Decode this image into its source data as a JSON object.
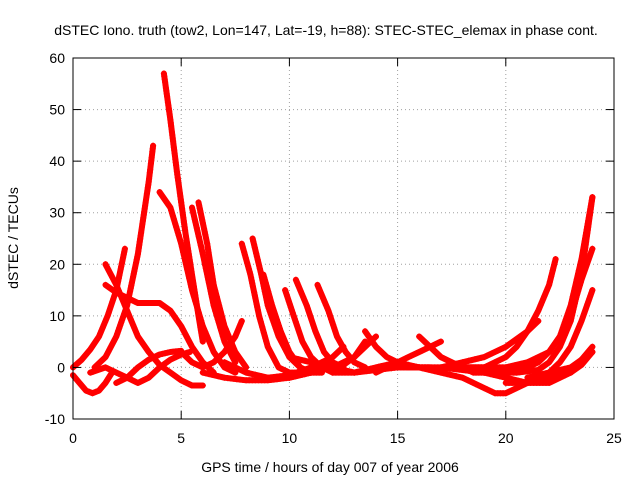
{
  "chart_data": {
    "type": "scatter",
    "title": "dSTEC Iono. truth (tow2, Lon=147, Lat=-19, h=88): STEC-STEC_elemax in phase cont.",
    "xlabel": "GPS time / hours of day 007 of year 2006",
    "ylabel": "dSTEC  / TECUs",
    "xlim": [
      0,
      25
    ],
    "ylim": [
      -10,
      60
    ],
    "xticks": [
      0,
      5,
      10,
      15,
      20,
      25
    ],
    "yticks": [
      -10,
      0,
      10,
      20,
      30,
      40,
      50,
      60
    ],
    "grid": true,
    "grid_style": "dotted",
    "marker": "plus",
    "color": "#ff0000",
    "series": [
      {
        "x": [
          0.0,
          0.4,
          0.8,
          1.2,
          1.6,
          2.0,
          2.4
        ],
        "y": [
          0,
          1.5,
          3.5,
          6,
          10,
          15,
          23
        ]
      },
      {
        "x": [
          0.0,
          0.3,
          0.6,
          0.9,
          1.2,
          1.5,
          1.8
        ],
        "y": [
          -1.5,
          -3,
          -4.5,
          -5,
          -4.5,
          -3,
          -1
        ]
      },
      {
        "x": [
          1.0,
          1.5,
          2.0,
          2.5,
          3.0,
          3.5,
          3.7
        ],
        "y": [
          0,
          2,
          6,
          12,
          22,
          36,
          43
        ]
      },
      {
        "x": [
          1.5,
          2.0,
          2.5,
          3.0,
          3.5,
          4.0,
          4.5,
          5.0,
          5.5,
          6.0
        ],
        "y": [
          20,
          16,
          11,
          6,
          3,
          0.5,
          -1,
          -2.5,
          -3.5,
          -3.5
        ]
      },
      {
        "x": [
          0.8,
          1.5,
          2.0,
          2.5,
          3.0,
          3.5,
          4.0,
          4.5,
          5.0,
          5.4
        ],
        "y": [
          -1,
          0,
          -1,
          -2,
          -3,
          -2,
          0,
          1.5,
          2.5,
          3
        ]
      },
      {
        "x": [
          1.5,
          2.0,
          2.5,
          3.0,
          3.5,
          4.0,
          4.5,
          5.0,
          5.5,
          6.0,
          6.5
        ],
        "y": [
          16,
          14.5,
          13.5,
          12.5,
          12.5,
          12.5,
          11,
          8,
          4,
          1,
          -1
        ]
      },
      {
        "x": [
          2.0,
          2.5,
          3.0,
          3.5,
          4.0,
          4.5,
          5.0
        ],
        "y": [
          -3,
          -2,
          0,
          1.5,
          2.5,
          3,
          3.2
        ]
      },
      {
        "x": [
          4.2,
          4.5,
          4.8,
          5.0,
          5.2,
          5.5,
          5.8,
          6.0
        ],
        "y": [
          57,
          48,
          38,
          32,
          26,
          18,
          10,
          5
        ]
      },
      {
        "x": [
          4.0,
          4.5,
          5.0,
          5.5,
          6.0,
          6.5,
          7.0,
          7.5
        ],
        "y": [
          34,
          31,
          24,
          15,
          8,
          3,
          0,
          -1
        ]
      },
      {
        "x": [
          5.5,
          6.0,
          6.5,
          7.0,
          7.5
        ],
        "y": [
          31,
          22,
          12,
          5,
          1
        ]
      },
      {
        "x": [
          5.8,
          6.2,
          6.5,
          7.0,
          7.5,
          8.0
        ],
        "y": [
          32,
          24,
          16,
          8,
          3,
          0
        ]
      },
      {
        "x": [
          5.0,
          5.5,
          6.0,
          6.5,
          7.0,
          7.5,
          7.8
        ],
        "y": [
          3,
          1,
          0,
          1,
          3,
          6,
          9
        ]
      },
      {
        "x": [
          7.8,
          8.2,
          8.6,
          9.0,
          9.5,
          10.0,
          10.5
        ],
        "y": [
          24,
          18,
          10,
          4,
          0,
          -1,
          -1
        ]
      },
      {
        "x": [
          8.3,
          8.7,
          9.0,
          9.5,
          10.0,
          10.5,
          11.0
        ],
        "y": [
          25,
          18,
          12,
          6,
          2,
          0,
          -1
        ]
      },
      {
        "x": [
          8.8,
          9.2,
          9.6,
          10.0,
          10.5,
          11.0,
          11.5
        ],
        "y": [
          18,
          12,
          7,
          3,
          0,
          -1,
          -1
        ]
      },
      {
        "x": [
          6.0,
          7.0,
          8.0,
          9.0,
          10.0,
          11.0,
          11.5,
          12.0
        ],
        "y": [
          -1,
          -2,
          -2.5,
          -2.5,
          -2,
          -1,
          0,
          1
        ]
      },
      {
        "x": [
          7.0,
          8.0,
          9.0,
          10.0,
          11.0,
          12.0,
          12.5
        ],
        "y": [
          1,
          -1,
          -2,
          -1.5,
          0,
          2,
          4
        ]
      },
      {
        "x": [
          9.8,
          10.2,
          10.6,
          11.0,
          11.5,
          12.0
        ],
        "y": [
          15,
          10,
          5,
          2,
          0,
          -1
        ]
      },
      {
        "x": [
          10.3,
          10.8,
          11.2,
          11.6,
          12.0,
          12.5
        ],
        "y": [
          17,
          12,
          7,
          3,
          1,
          0
        ]
      },
      {
        "x": [
          11.3,
          11.8,
          12.2,
          12.6,
          13.0,
          13.5
        ],
        "y": [
          16,
          11,
          6,
          3,
          1,
          0
        ]
      },
      {
        "x": [
          9.0,
          10.0,
          11.0,
          12.0,
          13.0,
          13.5
        ],
        "y": [
          -2,
          -2,
          -1,
          0,
          2,
          5
        ]
      },
      {
        "x": [
          10.0,
          11.0,
          12.0,
          12.5,
          13.0,
          13.5,
          14.0
        ],
        "y": [
          2,
          1,
          0,
          0.5,
          2,
          4,
          6
        ]
      },
      {
        "x": [
          12.0,
          12.5,
          13.0,
          13.5,
          14.0,
          14.5,
          15.0,
          15.5,
          16.0
        ],
        "y": [
          0,
          -0.5,
          -1,
          -0.5,
          0,
          0.5,
          1,
          0.5,
          0
        ]
      },
      {
        "x": [
          13.5,
          14.0,
          14.5,
          15.0,
          15.5,
          16.0,
          16.5
        ],
        "y": [
          7,
          4,
          2,
          1,
          0,
          0,
          0
        ]
      },
      {
        "x": [
          14.0,
          14.5,
          15.0,
          15.5,
          16.0,
          16.5,
          17.0
        ],
        "y": [
          -1,
          0,
          1,
          2,
          3,
          4,
          5
        ]
      },
      {
        "x": [
          16.0,
          16.5,
          17.0,
          17.5,
          18.0,
          18.5,
          19.0
        ],
        "y": [
          6,
          4,
          2,
          1,
          0,
          0,
          0
        ]
      },
      {
        "x": [
          12.0,
          13.0,
          14.0,
          15.0,
          16.0,
          17.0,
          18.0,
          19.0,
          20.0
        ],
        "y": [
          -1,
          -1,
          -0.5,
          0,
          0,
          0,
          -0.5,
          -1,
          -1
        ]
      },
      {
        "x": [
          15.0,
          16.0,
          17.0,
          18.0,
          19.0,
          19.5,
          20.0,
          21.0,
          22.0,
          23.0,
          24.0
        ],
        "y": [
          0,
          0,
          -1,
          -2,
          -4,
          -5,
          -5,
          -3,
          -1,
          0,
          3
        ]
      },
      {
        "x": [
          16.5,
          17.0,
          17.5,
          18.0,
          18.5,
          19.0
        ],
        "y": [
          4,
          2,
          1,
          0,
          -1,
          -1
        ]
      },
      {
        "x": [
          17.0,
          18.0,
          19.0,
          20.0,
          21.0,
          21.5
        ],
        "y": [
          0,
          1,
          2,
          4,
          7,
          9
        ]
      },
      {
        "x": [
          18.0,
          19.0,
          20.0,
          20.5,
          21.0,
          21.5,
          22.0,
          22.3
        ],
        "y": [
          0,
          0,
          2,
          4,
          7,
          11,
          16,
          21
        ]
      },
      {
        "x": [
          18.0,
          19.0,
          20.0,
          21.0,
          22.0,
          23.0,
          24.0
        ],
        "y": [
          0,
          -1,
          -2,
          -3,
          -3,
          -1,
          4
        ]
      },
      {
        "x": [
          19.0,
          20.0,
          21.0,
          22.0,
          22.5,
          23.0,
          23.5,
          24.0
        ],
        "y": [
          0,
          0,
          1,
          3,
          6,
          10,
          17,
          23
        ]
      },
      {
        "x": [
          19.5,
          20.5,
          21.5,
          22.0,
          22.5,
          23.0,
          23.5,
          24.0
        ],
        "y": [
          -1,
          -1,
          -0.5,
          1,
          4,
          9,
          18,
          33
        ]
      },
      {
        "x": [
          20.0,
          21.0,
          21.5,
          22.0,
          22.5,
          23.0,
          23.5,
          24.0
        ],
        "y": [
          0,
          0,
          1,
          3,
          6,
          12,
          21,
          33
        ]
      },
      {
        "x": [
          21.0,
          22.0,
          22.5,
          23.0,
          23.5,
          24.0
        ],
        "y": [
          -2,
          -1,
          1,
          4,
          9,
          15
        ]
      },
      {
        "x": [
          20.0,
          21.0,
          22.0,
          23.0,
          23.5,
          24.0
        ],
        "y": [
          -3,
          -3,
          -2,
          -1,
          0.5,
          3
        ]
      }
    ]
  }
}
